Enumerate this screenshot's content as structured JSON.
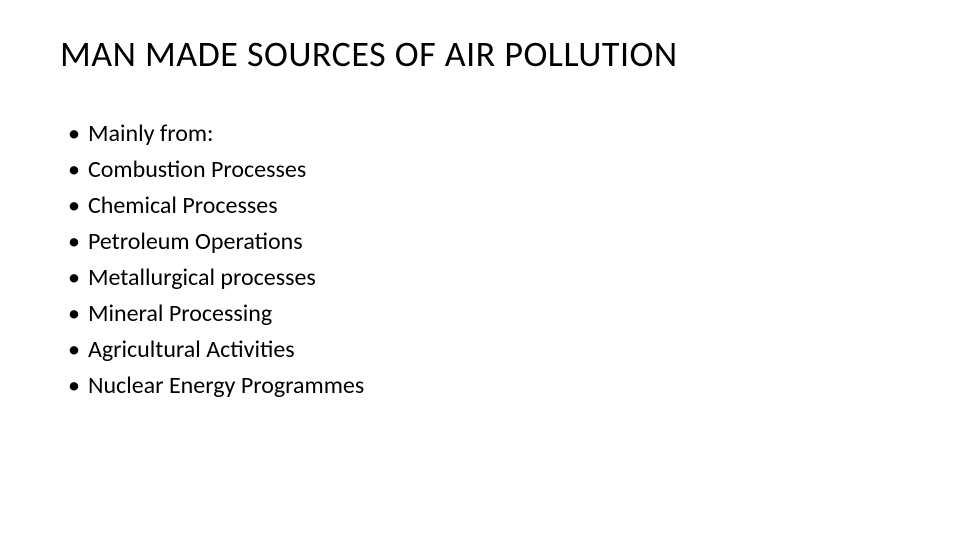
{
  "slide": {
    "title": "MAN MADE SOURCES OF AIR POLLUTION",
    "title_fontsize": 36,
    "title_color": "#000000",
    "body_fontsize": 24,
    "body_color": "#000000",
    "background_color": "#ffffff",
    "bullets": [
      "Mainly from:",
      "Combustion Processes",
      "Chemical Processes",
      "Petroleum Operations",
      "Metallurgical processes",
      "Mineral Processing",
      "Agricultural Activities",
      "Nuclear Energy Programmes"
    ],
    "bullet_marker": "•"
  }
}
